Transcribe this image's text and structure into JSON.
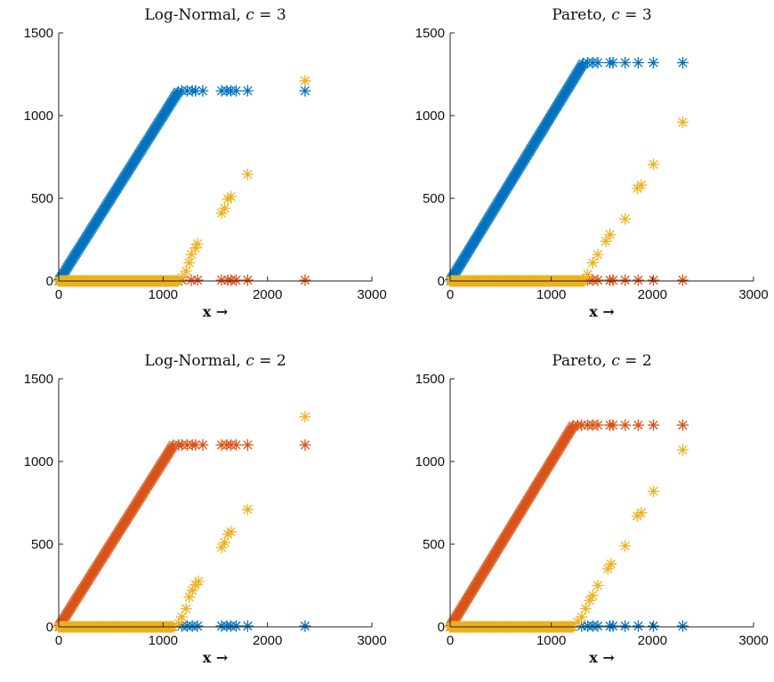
{
  "chart_data": [
    {
      "type": "scatter",
      "title": "Log-Normal, c = 3",
      "title_text": "Log-Normal, ",
      "title_var": "c",
      "title_eq": " = 3",
      "xlabel": "x →",
      "xlim": [
        0,
        3000
      ],
      "ylim": [
        0,
        1500
      ],
      "xticks": [
        0,
        1000,
        2000,
        3000
      ],
      "yticks": [
        0,
        500,
        1000,
        1500
      ],
      "marker": "asterisk",
      "series": [
        {
          "color": "#0072BD",
          "description": "identity line y = x up to cap, then constant at cap",
          "linear_to": 1150,
          "cap": 1150,
          "plateau_x": [
            1180,
            1230,
            1280,
            1310,
            1380,
            1560,
            1610,
            1650,
            1700,
            1810,
            2360
          ]
        },
        {
          "color": "#D95319",
          "description": "near zero across range",
          "points": [
            [
              1180,
              5
            ],
            [
              1270,
              5
            ],
            [
              1330,
              5
            ],
            [
              1560,
              5
            ],
            [
              1620,
              5
            ],
            [
              1650,
              5
            ],
            [
              1700,
              5
            ],
            [
              1810,
              5
            ],
            [
              2360,
              5
            ]
          ]
        },
        {
          "color": "#EDB120",
          "description": "zero until ~1150, then rising",
          "zero_to": 1150,
          "points": [
            [
              1180,
              20
            ],
            [
              1220,
              60
            ],
            [
              1250,
              110
            ],
            [
              1270,
              160
            ],
            [
              1310,
              200
            ],
            [
              1330,
              225
            ],
            [
              1560,
              410
            ],
            [
              1590,
              440
            ],
            [
              1620,
              495
            ],
            [
              1650,
              510
            ],
            [
              1810,
              645
            ],
            [
              2360,
              1210
            ]
          ]
        }
      ]
    },
    {
      "type": "scatter",
      "title": "Pareto, c = 3",
      "title_text": "Pareto, ",
      "title_var": "c",
      "title_eq": " = 3",
      "xlabel": "x →",
      "xlim": [
        0,
        3000
      ],
      "ylim": [
        0,
        1500
      ],
      "xticks": [
        0,
        1000,
        2000,
        3000
      ],
      "yticks": [
        0,
        500,
        1000,
        1500
      ],
      "marker": "asterisk",
      "series": [
        {
          "color": "#0072BD",
          "description": "identity line y = x up to cap, then constant at cap",
          "linear_to": 1320,
          "cap": 1320,
          "plateau_x": [
            1360,
            1410,
            1460,
            1580,
            1610,
            1730,
            1860,
            2010,
            2300
          ]
        },
        {
          "color": "#D95319",
          "description": "near zero across range",
          "points": [
            [
              1360,
              5
            ],
            [
              1410,
              5
            ],
            [
              1460,
              5
            ],
            [
              1580,
              5
            ],
            [
              1610,
              5
            ],
            [
              1730,
              5
            ],
            [
              1860,
              5
            ],
            [
              2010,
              5
            ],
            [
              2300,
              5
            ]
          ]
        },
        {
          "color": "#EDB120",
          "description": "zero until ~1330, then rising",
          "zero_to": 1330,
          "points": [
            [
              1360,
              40
            ],
            [
              1410,
              110
            ],
            [
              1460,
              160
            ],
            [
              1540,
              240
            ],
            [
              1580,
              280
            ],
            [
              1730,
              375
            ],
            [
              1850,
              560
            ],
            [
              1890,
              580
            ],
            [
              2010,
              705
            ],
            [
              2300,
              960
            ]
          ]
        }
      ]
    },
    {
      "type": "scatter",
      "title": "Log-Normal, c = 2",
      "title_text": "Log-Normal, ",
      "title_var": "c",
      "title_eq": " = 2",
      "xlabel": "x →",
      "xlim": [
        0,
        3000
      ],
      "ylim": [
        0,
        1500
      ],
      "xticks": [
        0,
        1000,
        2000,
        3000
      ],
      "yticks": [
        0,
        500,
        1000,
        1500
      ],
      "marker": "asterisk",
      "series": [
        {
          "color": "#D95319",
          "description": "identity line y = x up to cap, then constant at cap",
          "linear_to": 1100,
          "cap": 1100,
          "plateau_x": [
            1150,
            1180,
            1230,
            1280,
            1310,
            1380,
            1560,
            1610,
            1650,
            1700,
            1810,
            2360
          ]
        },
        {
          "color": "#0072BD",
          "description": "near zero across range",
          "points": [
            [
              1180,
              5
            ],
            [
              1230,
              5
            ],
            [
              1280,
              5
            ],
            [
              1330,
              5
            ],
            [
              1560,
              5
            ],
            [
              1610,
              5
            ],
            [
              1650,
              5
            ],
            [
              1700,
              5
            ],
            [
              1810,
              5
            ],
            [
              2360,
              5
            ]
          ]
        },
        {
          "color": "#EDB120",
          "description": "zero until ~1100, then rising",
          "zero_to": 1100,
          "points": [
            [
              1150,
              20
            ],
            [
              1180,
              60
            ],
            [
              1220,
              110
            ],
            [
              1250,
              180
            ],
            [
              1280,
              220
            ],
            [
              1310,
              255
            ],
            [
              1340,
              275
            ],
            [
              1560,
              480
            ],
            [
              1590,
              510
            ],
            [
              1620,
              560
            ],
            [
              1650,
              575
            ],
            [
              1810,
              710
            ],
            [
              2360,
              1270
            ]
          ]
        }
      ]
    },
    {
      "type": "scatter",
      "title": "Pareto, c = 2",
      "title_text": "Pareto, ",
      "title_var": "c",
      "title_eq": " = 2",
      "xlabel": "x →",
      "xlim": [
        0,
        3000
      ],
      "ylim": [
        0,
        1500
      ],
      "xticks": [
        0,
        1000,
        2000,
        3000
      ],
      "yticks": [
        0,
        500,
        1000,
        1500
      ],
      "marker": "asterisk",
      "series": [
        {
          "color": "#D95319",
          "description": "identity line y = x up to cap, then constant at cap",
          "linear_to": 1220,
          "cap": 1220,
          "plateau_x": [
            1260,
            1300,
            1360,
            1410,
            1460,
            1580,
            1610,
            1730,
            1860,
            2010,
            2300
          ]
        },
        {
          "color": "#0072BD",
          "description": "near zero across range",
          "points": [
            [
              1300,
              5
            ],
            [
              1360,
              5
            ],
            [
              1410,
              5
            ],
            [
              1460,
              5
            ],
            [
              1580,
              5
            ],
            [
              1610,
              5
            ],
            [
              1730,
              5
            ],
            [
              1860,
              5
            ],
            [
              2010,
              5
            ],
            [
              2300,
              5
            ]
          ]
        },
        {
          "color": "#EDB120",
          "description": "zero until ~1220, then rising",
          "zero_to": 1220,
          "points": [
            [
              1260,
              30
            ],
            [
              1300,
              60
            ],
            [
              1340,
              110
            ],
            [
              1380,
              160
            ],
            [
              1410,
              190
            ],
            [
              1460,
              250
            ],
            [
              1560,
              350
            ],
            [
              1590,
              380
            ],
            [
              1730,
              490
            ],
            [
              1850,
              670
            ],
            [
              1890,
              690
            ],
            [
              2010,
              820
            ],
            [
              2300,
              1070
            ]
          ]
        }
      ]
    }
  ]
}
